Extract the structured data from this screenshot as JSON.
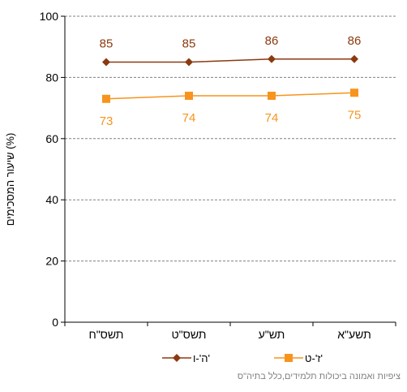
{
  "chart_data": {
    "type": "line",
    "categories": [
      "תשס\"ח",
      "תשס\"ט",
      "תש\"ע",
      "תשע\"א"
    ],
    "series": [
      {
        "name": "ה'-ו'",
        "values": [
          85,
          85,
          86,
          86
        ],
        "labels": [
          "85",
          "85",
          "86",
          "86"
        ],
        "color": "#8B3A0F",
        "marker": "diamond"
      },
      {
        "name": "ז'-ט'",
        "values": [
          73,
          74,
          74,
          75
        ],
        "labels": [
          "73",
          "74",
          "74",
          "75"
        ],
        "color": "#F7941D",
        "marker": "square"
      }
    ],
    "ylabel": "שיעור המסכימים (%)",
    "ylim": [
      0,
      100
    ],
    "yticks": [
      "0",
      "20",
      "40",
      "60",
      "80",
      "100"
    ],
    "grid": true,
    "legend_position": "bottom"
  },
  "source_note": "ציפיות ואמונה ביכולות תלמידים,כלל בתיה\"ס"
}
